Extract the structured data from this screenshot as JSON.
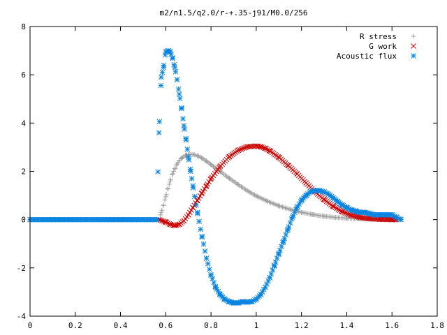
{
  "chart_data": {
    "type": "scatter",
    "title": "m2/n1.5/q2.0/r-+.35-j91/M0.0/256",
    "xlabel": "",
    "ylabel": "",
    "xlim": [
      0,
      1.8
    ],
    "ylim": [
      -4,
      8
    ],
    "grid": false,
    "legend_position": "top-right",
    "x_ticks": [
      0,
      0.2,
      0.4,
      0.6,
      0.8,
      1,
      1.2,
      1.4,
      1.6,
      1.8
    ],
    "x_tick_labels": [
      "0",
      "0.2",
      "0.4",
      "0.6",
      "0.8",
      "1",
      "1.2",
      "1.4",
      "1.6",
      "1.8"
    ],
    "y_ticks": [
      -4,
      -2,
      0,
      2,
      4,
      6,
      8
    ],
    "y_tick_labels": [
      "-4",
      "-2",
      "0",
      "2",
      "4",
      "6",
      "8"
    ],
    "series": [
      {
        "name": "R stress",
        "marker": "plus",
        "color": "#a0a0a0",
        "x": [
          0.57,
          0.58,
          0.59,
          0.6,
          0.61,
          0.62,
          0.63,
          0.64,
          0.65,
          0.66,
          0.67,
          0.68,
          0.69,
          0.7,
          0.72,
          0.74,
          0.76,
          0.78,
          0.8,
          0.84,
          0.88,
          0.92,
          0.96,
          1.0,
          1.05,
          1.1,
          1.15,
          1.2,
          1.25,
          1.3,
          1.35,
          1.4,
          1.45,
          1.5,
          1.55,
          1.6,
          1.62
        ],
        "y": [
          0.0,
          0.3,
          0.6,
          0.95,
          1.3,
          1.6,
          1.9,
          2.1,
          2.3,
          2.45,
          2.55,
          2.62,
          2.67,
          2.7,
          2.7,
          2.65,
          2.55,
          2.42,
          2.28,
          2.0,
          1.72,
          1.45,
          1.2,
          0.98,
          0.76,
          0.57,
          0.42,
          0.3,
          0.21,
          0.14,
          0.09,
          0.06,
          0.04,
          0.02,
          0.01,
          0.0,
          0.0
        ]
      },
      {
        "name": "G work",
        "marker": "cross",
        "color": "#cc0000",
        "x": [
          0.57,
          0.6,
          0.62,
          0.64,
          0.66,
          0.68,
          0.7,
          0.72,
          0.74,
          0.76,
          0.78,
          0.8,
          0.84,
          0.88,
          0.92,
          0.96,
          1.0,
          1.02,
          1.04,
          1.06,
          1.1,
          1.14,
          1.18,
          1.22,
          1.26,
          1.3,
          1.34,
          1.38,
          1.42,
          1.46,
          1.5,
          1.55,
          1.6,
          1.62
        ],
        "y": [
          0.0,
          -0.1,
          -0.2,
          -0.25,
          -0.2,
          -0.05,
          0.2,
          0.5,
          0.8,
          1.1,
          1.4,
          1.7,
          2.2,
          2.6,
          2.87,
          3.02,
          3.05,
          3.02,
          2.95,
          2.85,
          2.58,
          2.25,
          1.9,
          1.52,
          1.15,
          0.83,
          0.55,
          0.33,
          0.18,
          0.09,
          0.04,
          0.01,
          0.0,
          0.0
        ]
      },
      {
        "name": "Acoustic flux",
        "marker": "star",
        "color": "#0a84e0",
        "x": [
          0.0,
          0.02,
          0.04,
          0.06,
          0.08,
          0.1,
          0.12,
          0.14,
          0.16,
          0.18,
          0.2,
          0.22,
          0.24,
          0.26,
          0.28,
          0.3,
          0.32,
          0.34,
          0.36,
          0.38,
          0.4,
          0.42,
          0.44,
          0.46,
          0.48,
          0.5,
          0.52,
          0.54,
          0.56,
          0.57,
          0.58,
          0.59,
          0.6,
          0.61,
          0.62,
          0.63,
          0.64,
          0.65,
          0.66,
          0.67,
          0.68,
          0.69,
          0.7,
          0.71,
          0.72,
          0.74,
          0.76,
          0.78,
          0.8,
          0.82,
          0.84,
          0.86,
          0.88,
          0.9,
          0.92,
          0.94,
          0.96,
          0.98,
          1.0,
          1.02,
          1.04,
          1.06,
          1.08,
          1.1,
          1.12,
          1.14,
          1.16,
          1.18,
          1.2,
          1.22,
          1.24,
          1.26,
          1.28,
          1.3,
          1.32,
          1.34,
          1.36,
          1.38,
          1.4,
          1.42,
          1.44,
          1.46,
          1.48,
          1.5,
          1.52,
          1.54,
          1.56,
          1.58,
          1.6,
          1.62,
          1.64
        ],
        "y": [
          0,
          0,
          0,
          0,
          0,
          0,
          0,
          0,
          0,
          0,
          0,
          0,
          0,
          0,
          0,
          0,
          0,
          0,
          0,
          0,
          0,
          0,
          0,
          0,
          0,
          0,
          0,
          0,
          0,
          3.6,
          5.9,
          6.3,
          6.95,
          7.0,
          6.95,
          6.7,
          6.3,
          5.8,
          5.2,
          4.6,
          3.9,
          3.3,
          2.6,
          2.0,
          1.4,
          0.3,
          -0.7,
          -1.6,
          -2.3,
          -2.8,
          -3.1,
          -3.3,
          -3.4,
          -3.45,
          -3.45,
          -3.4,
          -3.42,
          -3.4,
          -3.3,
          -3.1,
          -2.8,
          -2.4,
          -1.9,
          -1.4,
          -0.9,
          -0.4,
          0.1,
          0.5,
          0.8,
          1.0,
          1.15,
          1.2,
          1.2,
          1.15,
          1.05,
          0.9,
          0.75,
          0.6,
          0.5,
          0.4,
          0.35,
          0.3,
          0.3,
          0.25,
          0.2,
          0.2,
          0.2,
          0.2,
          0.2,
          0.1,
          0.0
        ]
      }
    ]
  }
}
